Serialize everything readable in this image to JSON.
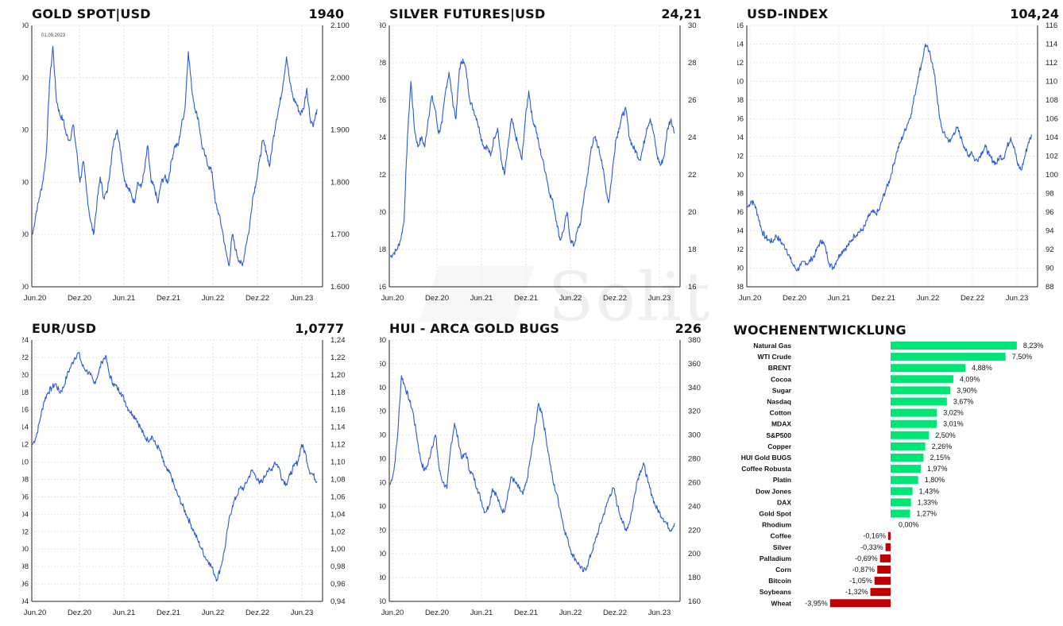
{
  "panels": [
    {
      "title": "GOLD SPOT|USD",
      "value": "1940",
      "date_note": "01.09.2023"
    },
    {
      "title": "SILVER FUTURES|USD",
      "value": "24,21"
    },
    {
      "title": "USD-INDEX",
      "value": "104,24"
    },
    {
      "title": "EUR/USD",
      "value": "1,0777"
    },
    {
      "title": "HUI - ARCA GOLD BUGS",
      "value": "226"
    }
  ],
  "watermark": "Solit",
  "weekly": {
    "title": "WOCHENENTWICKLUNG"
  },
  "chart_data": [
    {
      "type": "line",
      "title": "GOLD SPOT|USD",
      "x_ticks": [
        "Jun.20",
        "Dez.20",
        "Jun.21",
        "Dez.21",
        "Jun.22",
        "Dez.22",
        "Jun.23"
      ],
      "y_ticks": [
        "1.600",
        "1.700",
        "1.800",
        "1.900",
        "2.000",
        "2.100"
      ],
      "ylim": [
        1600,
        2100
      ],
      "grid": true,
      "color": "#2a5bd7",
      "series": [
        {
          "values": [
            1700,
            1740,
            1770,
            1800,
            1850,
            1990,
            2060,
            1960,
            1930,
            1920,
            1890,
            1880,
            1910,
            1860,
            1800,
            1840,
            1780,
            1730,
            1700,
            1760,
            1810,
            1770,
            1780,
            1830,
            1880,
            1900,
            1860,
            1810,
            1790,
            1780,
            1760,
            1800,
            1790,
            1820,
            1870,
            1800,
            1790,
            1760,
            1800,
            1810,
            1800,
            1840,
            1870,
            1870,
            1910,
            1940,
            2050,
            1980,
            1940,
            1920,
            1870,
            1850,
            1830,
            1820,
            1760,
            1740,
            1710,
            1670,
            1640,
            1700,
            1670,
            1650,
            1640,
            1680,
            1710,
            1770,
            1800,
            1840,
            1880,
            1860,
            1830,
            1880,
            1920,
            1950,
            1990,
            2040,
            1990,
            1960,
            1950,
            1930,
            1940,
            1980,
            1920,
            1910,
            1940
          ]
        }
      ]
    },
    {
      "type": "line",
      "title": "SILVER FUTURES|USD",
      "x_ticks": [
        "Jun.20",
        "Dez.20",
        "Jun.21",
        "Dez.21",
        "Jun.22",
        "Dez.22",
        "Jun.23"
      ],
      "y_ticks": [
        "16",
        "18",
        "20",
        "22",
        "24",
        "26",
        "28",
        "30"
      ],
      "ylim": [
        16,
        30
      ],
      "grid": true,
      "color": "#2a5bd7",
      "series": [
        {
          "values": [
            17.6,
            17.8,
            18.0,
            18.5,
            19.5,
            24.0,
            27.0,
            24.5,
            23.5,
            24.0,
            23.5,
            25.0,
            26.2,
            25.5,
            24.2,
            24.8,
            26.5,
            27.5,
            26.0,
            25.0,
            27.7,
            28.2,
            27.5,
            26.0,
            25.5,
            25.0,
            24.2,
            23.5,
            23.5,
            23.0,
            24.0,
            24.5,
            22.8,
            22.0,
            23.5,
            25.0,
            24.2,
            23.5,
            22.8,
            25.0,
            26.5,
            25.0,
            24.5,
            23.5,
            22.8,
            22.0,
            21.0,
            20.5,
            19.5,
            18.5,
            19.0,
            20.0,
            18.5,
            18.2,
            19.0,
            19.5,
            21.0,
            22.0,
            23.5,
            24.0,
            23.5,
            22.8,
            21.5,
            20.5,
            22.0,
            23.8,
            24.5,
            25.2,
            25.5,
            24.0,
            23.5,
            23.2,
            22.8,
            23.5,
            24.5,
            25.0,
            24.2,
            23.0,
            22.5,
            23.0,
            24.5,
            25.0,
            24.21
          ]
        }
      ]
    },
    {
      "type": "line",
      "title": "USD-INDEX",
      "x_ticks": [
        "Jun.20",
        "Dez.20",
        "Jun.21",
        "Dez.21",
        "Jun.22",
        "Dez.22",
        "Jun.23"
      ],
      "y_ticks": [
        "88",
        "90",
        "92",
        "94",
        "96",
        "98",
        "100",
        "102",
        "104",
        "106",
        "108",
        "110",
        "112",
        "114",
        "116"
      ],
      "ylim": [
        88,
        116
      ],
      "grid": true,
      "color": "#2a5bd7",
      "series": [
        {
          "values": [
            96.5,
            97.2,
            96.8,
            95.5,
            94.0,
            93.3,
            93.0,
            92.8,
            93.5,
            93.0,
            92.5,
            92.0,
            91.0,
            90.2,
            89.8,
            90.3,
            90.7,
            90.5,
            91.0,
            91.5,
            92.5,
            93.0,
            92.0,
            90.5,
            90.0,
            90.8,
            91.5,
            92.0,
            92.3,
            92.8,
            93.5,
            93.8,
            94.0,
            94.5,
            95.5,
            96.0,
            95.8,
            96.2,
            97.5,
            98.5,
            99.5,
            101.0,
            102.5,
            103.5,
            104.5,
            105.5,
            106.5,
            108.5,
            110.5,
            112.0,
            114.0,
            113.2,
            112.0,
            109.5,
            106.0,
            104.5,
            104.0,
            103.5,
            104.5,
            105.0,
            104.0,
            103.0,
            102.0,
            102.5,
            101.5,
            101.8,
            102.5,
            103.0,
            102.0,
            101.5,
            101.2,
            102.0,
            101.8,
            103.0,
            104.0,
            103.0,
            101.0,
            100.5,
            102.0,
            103.5,
            104.24
          ]
        }
      ]
    },
    {
      "type": "line",
      "title": "EUR/USD",
      "x_ticks": [
        "Jun.20",
        "Dez.20",
        "Jun.21",
        "Dez.21",
        "Jun.22",
        "Dez.22",
        "Jun.23"
      ],
      "y_ticks": [
        "0,94",
        "0,96",
        "0,98",
        "1,00",
        "1,02",
        "1,04",
        "1,06",
        "1,08",
        "1,10",
        "1,12",
        "1,14",
        "1,16",
        "1,18",
        "1,20",
        "1,22",
        "1,24"
      ],
      "ylim": [
        0.94,
        1.24
      ],
      "grid": true,
      "color": "#2a5bd7",
      "series": [
        {
          "values": [
            1.12,
            1.13,
            1.15,
            1.17,
            1.18,
            1.185,
            1.19,
            1.18,
            1.185,
            1.2,
            1.21,
            1.22,
            1.225,
            1.21,
            1.205,
            1.2,
            1.19,
            1.2,
            1.215,
            1.222,
            1.2,
            1.19,
            1.185,
            1.18,
            1.17,
            1.16,
            1.155,
            1.15,
            1.14,
            1.13,
            1.125,
            1.13,
            1.12,
            1.115,
            1.1,
            1.09,
            1.085,
            1.07,
            1.06,
            1.05,
            1.04,
            1.03,
            1.02,
            1.01,
            1.0,
            0.99,
            0.985,
            0.975,
            0.965,
            0.98,
            1.0,
            1.03,
            1.05,
            1.06,
            1.07,
            1.07,
            1.08,
            1.09,
            1.085,
            1.075,
            1.08,
            1.09,
            1.09,
            1.1,
            1.095,
            1.08,
            1.075,
            1.085,
            1.095,
            1.1,
            1.12,
            1.11,
            1.09,
            1.085,
            1.0777
          ]
        }
      ]
    },
    {
      "type": "line",
      "title": "HUI - ARCA GOLD BUGS",
      "x_ticks": [
        "Jun.20",
        "Dez.20",
        "Jun.21",
        "Dez.21",
        "Jun.22",
        "Dez.22",
        "Jun.23"
      ],
      "y_ticks": [
        "160",
        "180",
        "200",
        "220",
        "240",
        "260",
        "280",
        "300",
        "320",
        "340",
        "360",
        "380"
      ],
      "ylim": [
        160,
        380
      ],
      "grid": true,
      "color": "#2a5bd7",
      "series": [
        {
          "values": [
            258,
            270,
            300,
            350,
            340,
            330,
            320,
            300,
            280,
            270,
            275,
            290,
            300,
            270,
            260,
            255,
            290,
            310,
            295,
            280,
            285,
            270,
            265,
            255,
            245,
            235,
            240,
            255,
            250,
            240,
            235,
            250,
            265,
            260,
            255,
            250,
            260,
            280,
            300,
            325,
            320,
            300,
            280,
            260,
            250,
            235,
            220,
            210,
            200,
            195,
            190,
            185,
            190,
            200,
            210,
            220,
            230,
            240,
            250,
            255,
            240,
            230,
            220,
            225,
            240,
            260,
            270,
            275,
            260,
            250,
            240,
            235,
            230,
            225,
            220,
            226
          ]
        }
      ]
    },
    {
      "type": "bar",
      "title": "WOCHENENTWICKLUNG",
      "orientation": "horizontal",
      "categories": [
        "Natural Gas",
        "WTI Crude",
        "BRENT",
        "Cocoa",
        "Sugar",
        "Nasdaq",
        "Cotton",
        "MDAX",
        "S&P500",
        "Copper",
        "HUI Gold BUGS",
        "Coffee Robusta",
        "Platin",
        "Dow Jones",
        "DAX",
        "Gold Spot",
        "Rhodium",
        "Coffee",
        "Silver",
        "Palladium",
        "Corn",
        "Bitcoin",
        "Soybeans",
        "Wheat"
      ],
      "values": [
        8.23,
        7.5,
        4.88,
        4.09,
        3.9,
        3.67,
        3.02,
        3.01,
        2.5,
        2.26,
        2.15,
        1.97,
        1.8,
        1.43,
        1.33,
        1.27,
        0.0,
        -0.16,
        -0.33,
        -0.69,
        -0.87,
        -1.05,
        -1.32,
        -3.95
      ],
      "labels": [
        "8,23%",
        "7,50%",
        "4,88%",
        "4,09%",
        "3,90%",
        "3,67%",
        "3,02%",
        "3,01%",
        "2,50%",
        "2,26%",
        "2,15%",
        "1,97%",
        "1,80%",
        "1,43%",
        "1,33%",
        "1,27%",
        "0,00%",
        "-0,16%",
        "-0,33%",
        "-0,69%",
        "-0,87%",
        "-1,05%",
        "-1,32%",
        "-3,95%"
      ],
      "positive_color": "#00e676",
      "negative_color": "#c00000"
    }
  ]
}
